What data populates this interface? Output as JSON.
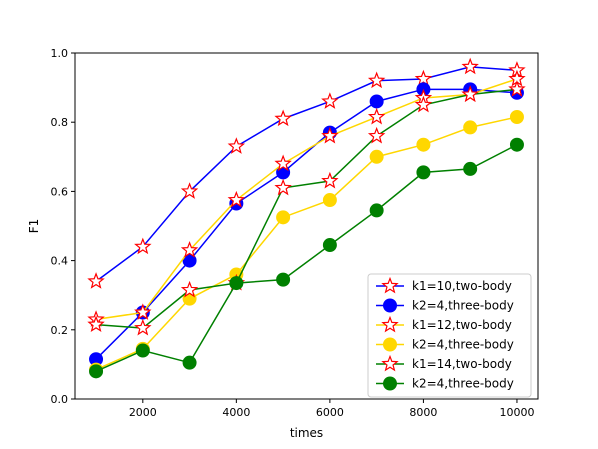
{
  "chart_data": {
    "type": "line",
    "title": "",
    "xlabel": "times",
    "ylabel": "F1",
    "xlim": [
      550,
      10450
    ],
    "ylim": [
      0.0,
      1.0
    ],
    "xticks": [
      2000,
      4000,
      6000,
      8000,
      10000
    ],
    "yticks": [
      0.0,
      0.2,
      0.4,
      0.6,
      0.8,
      1.0
    ],
    "xtick_labels": [
      "2000",
      "4000",
      "6000",
      "8000",
      "10000"
    ],
    "ytick_labels": [
      "0.0",
      "0.2",
      "0.4",
      "0.6",
      "0.8",
      "1.0"
    ],
    "grid": false,
    "legend_position": "bottom-right",
    "x": [
      1000,
      2000,
      3000,
      4000,
      5000,
      6000,
      7000,
      8000,
      9000,
      10000
    ],
    "series": [
      {
        "name": "k1=10,two-body",
        "color": "#0000ff",
        "marker": "star",
        "values": [
          0.34,
          0.44,
          0.6,
          0.73,
          0.81,
          0.86,
          0.92,
          0.925,
          0.96,
          0.95
        ]
      },
      {
        "name": "k2=4,three-body",
        "color": "#0000ff",
        "marker": "circle",
        "values": [
          0.115,
          0.25,
          0.4,
          0.565,
          0.655,
          0.77,
          0.86,
          0.895,
          0.895,
          0.885
        ]
      },
      {
        "name": "k1=12,two-body",
        "color": "#ffd700",
        "marker": "star",
        "values": [
          0.23,
          0.25,
          0.43,
          0.575,
          0.68,
          0.76,
          0.815,
          0.87,
          0.88,
          0.925
        ]
      },
      {
        "name": "k2=4,three-body",
        "color": "#ffd700",
        "marker": "circle",
        "values": [
          0.085,
          0.145,
          0.29,
          0.36,
          0.525,
          0.575,
          0.7,
          0.735,
          0.785,
          0.815
        ]
      },
      {
        "name": "k1=14,two-body",
        "color": "#008000",
        "marker": "star",
        "values": [
          0.215,
          0.205,
          0.315,
          0.335,
          0.61,
          0.63,
          0.76,
          0.85,
          0.88,
          0.895
        ]
      },
      {
        "name": "k2=4,three-body",
        "color": "#008000",
        "marker": "circle",
        "values": [
          0.08,
          0.14,
          0.105,
          0.335,
          0.345,
          0.445,
          0.545,
          0.655,
          0.665,
          0.735
        ]
      }
    ],
    "star_marker_edge_color": "#ff0000",
    "star_marker_fill_color": "#ffffff"
  }
}
